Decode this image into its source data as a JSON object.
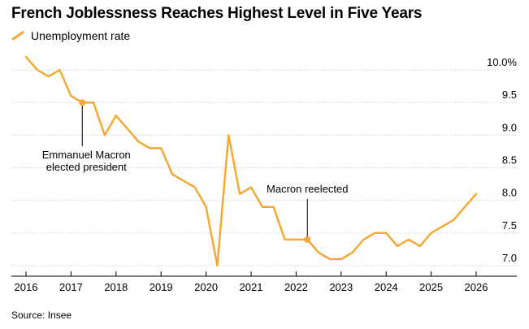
{
  "chart_data": {
    "type": "line",
    "title": "French Joblessness Reaches Highest Level in Five Years",
    "source": "Source: Insee",
    "series": [
      {
        "name": "Unemployment rate",
        "color": "#f5a833",
        "points": [
          [
            2016.0,
            10.2
          ],
          [
            2016.25,
            10.0
          ],
          [
            2016.5,
            9.9
          ],
          [
            2016.75,
            10.0
          ],
          [
            2017.0,
            9.6
          ],
          [
            2017.25,
            9.5
          ],
          [
            2017.5,
            9.5
          ],
          [
            2017.75,
            9.0
          ],
          [
            2018.0,
            9.3
          ],
          [
            2018.25,
            9.1
          ],
          [
            2018.5,
            8.9
          ],
          [
            2018.75,
            8.8
          ],
          [
            2019.0,
            8.8
          ],
          [
            2019.25,
            8.4
          ],
          [
            2019.5,
            8.3
          ],
          [
            2019.75,
            8.2
          ],
          [
            2020.0,
            7.9
          ],
          [
            2020.25,
            7.0
          ],
          [
            2020.5,
            9.0
          ],
          [
            2020.75,
            8.1
          ],
          [
            2021.0,
            8.2
          ],
          [
            2021.25,
            7.9
          ],
          [
            2021.5,
            7.9
          ],
          [
            2021.75,
            7.4
          ],
          [
            2022.0,
            7.4
          ],
          [
            2022.25,
            7.4
          ],
          [
            2022.5,
            7.2
          ],
          [
            2022.75,
            7.1
          ],
          [
            2023.0,
            7.1
          ],
          [
            2023.25,
            7.2
          ],
          [
            2023.5,
            7.4
          ],
          [
            2023.75,
            7.5
          ],
          [
            2024.0,
            7.5
          ],
          [
            2024.25,
            7.3
          ],
          [
            2024.5,
            7.4
          ],
          [
            2024.75,
            7.3
          ],
          [
            2025.0,
            7.5
          ],
          [
            2025.25,
            7.6
          ],
          [
            2025.5,
            7.7
          ],
          [
            2025.75,
            7.9
          ],
          [
            2026.0,
            8.1
          ]
        ]
      }
    ],
    "x_ticks": [
      2016,
      2017,
      2018,
      2019,
      2020,
      2021,
      2022,
      2023,
      2024,
      2025,
      2026
    ],
    "y_ticks": [
      {
        "value": 10.0,
        "label": "10.0%"
      },
      {
        "value": 9.5,
        "label": "9.5"
      },
      {
        "value": 9.0,
        "label": "9.0"
      },
      {
        "value": 8.5,
        "label": "8.5"
      },
      {
        "value": 8.0,
        "label": "8.0"
      },
      {
        "value": 7.5,
        "label": "7.5"
      },
      {
        "value": 7.0,
        "label": "7.0"
      }
    ],
    "xlim": [
      2016,
      2026
    ],
    "ylim": [
      7.0,
      10.2
    ],
    "y_axis_side": "right",
    "grid": "horizontal",
    "legend_position": "top-left",
    "annotations": [
      {
        "x": 2017.25,
        "y": 9.5,
        "lines": [
          "Emmanuel Macron",
          "elected president"
        ],
        "placement": "below"
      },
      {
        "x": 2022.25,
        "y": 7.4,
        "lines": [
          "Macron reelected"
        ],
        "placement": "above"
      }
    ]
  }
}
